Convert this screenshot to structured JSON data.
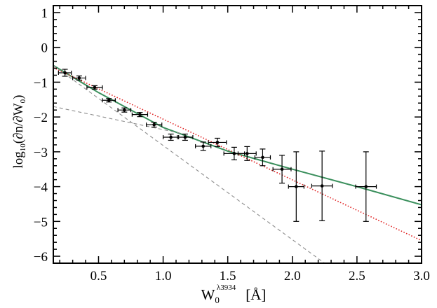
{
  "chart_data": {
    "type": "scatter",
    "xlabel": {
      "main": "W",
      "sub": "0",
      "sup": "λ3934",
      "unit": "[Å]"
    },
    "ylabel": {
      "prefix": "log",
      "sub10": "10",
      "expr": "(∂n/∂W",
      "sub0": "0",
      "close": ")"
    },
    "xlim": [
      0.15,
      3.0
    ],
    "ylim": [
      -6.2,
      1.2
    ],
    "xticks": [
      0.5,
      1.0,
      1.5,
      2.0,
      2.5,
      3.0
    ],
    "xtick_labels": [
      "0.5",
      "1.0",
      "1.5",
      "2.0",
      "2.5",
      "3.0"
    ],
    "yticks": [
      1,
      0,
      -1,
      -2,
      -3,
      -4,
      -5,
      -6
    ],
    "ytick_labels": [
      "1",
      "0",
      "−1",
      "−2",
      "−3",
      "−4",
      "−5",
      "−6"
    ],
    "grid": false,
    "legend": "none",
    "colors": {
      "points": "#000000",
      "green_fit": "#3a8f5c",
      "red_fit": "#e02020",
      "gray_components": "#8c8c8c"
    },
    "points": [
      {
        "x": 0.24,
        "y": -0.73,
        "xerr": 0.05,
        "yerr": 0.1
      },
      {
        "x": 0.35,
        "y": -0.88,
        "xerr": 0.05,
        "yerr": 0.06
      },
      {
        "x": 0.47,
        "y": -1.15,
        "xerr": 0.06,
        "yerr": 0.05
      },
      {
        "x": 0.58,
        "y": -1.52,
        "xerr": 0.05,
        "yerr": 0.05
      },
      {
        "x": 0.7,
        "y": -1.8,
        "xerr": 0.05,
        "yerr": 0.06
      },
      {
        "x": 0.82,
        "y": -1.93,
        "xerr": 0.06,
        "yerr": 0.06
      },
      {
        "x": 0.93,
        "y": -2.22,
        "xerr": 0.06,
        "yerr": 0.07
      },
      {
        "x": 1.06,
        "y": -2.58,
        "xerr": 0.06,
        "yerr": 0.09
      },
      {
        "x": 1.17,
        "y": -2.58,
        "xerr": 0.06,
        "yerr": 0.09
      },
      {
        "x": 1.31,
        "y": -2.84,
        "xerr": 0.06,
        "yerr": 0.12
      },
      {
        "x": 1.42,
        "y": -2.73,
        "xerr": 0.07,
        "yerr": 0.12
      },
      {
        "x": 1.55,
        "y": -3.05,
        "xerr": 0.08,
        "yerr": 0.18
      },
      {
        "x": 1.65,
        "y": -3.05,
        "xerr": 0.07,
        "yerr": 0.2
      },
      {
        "x": 1.77,
        "y": -3.16,
        "xerr": 0.06,
        "yerr": 0.24
      },
      {
        "x": 1.92,
        "y": -3.5,
        "xerr": 0.07,
        "yerr": 0.4
      },
      {
        "x": 2.03,
        "y": -4.0,
        "xerr": 0.06,
        "yerr": 1.0
      },
      {
        "x": 2.23,
        "y": -3.98,
        "xerr": 0.08,
        "yerr": 1.0
      },
      {
        "x": 2.57,
        "y": -4.0,
        "xerr": 0.08,
        "yerr": 1.0
      }
    ],
    "lines": [
      {
        "style": "solid",
        "color_key": "green_fit",
        "x": [
          0.15,
          0.5,
          1.0,
          1.5,
          2.0,
          2.5,
          3.0
        ],
        "y": [
          -0.52,
          -1.3,
          -2.3,
          -2.98,
          -3.5,
          -4.0,
          -4.52
        ]
      },
      {
        "style": "dotted",
        "color_key": "red_fit",
        "x": [
          0.15,
          3.0
        ],
        "y": [
          -0.58,
          -5.55
        ]
      },
      {
        "style": "dashed",
        "color_key": "gray_components",
        "x": [
          0.15,
          2.25
        ],
        "y": [
          -0.52,
          -6.2
        ]
      },
      {
        "style": "dashed",
        "color_key": "gray_components",
        "x": [
          0.15,
          1.15
        ],
        "y": [
          -1.7,
          -2.48
        ]
      }
    ]
  }
}
